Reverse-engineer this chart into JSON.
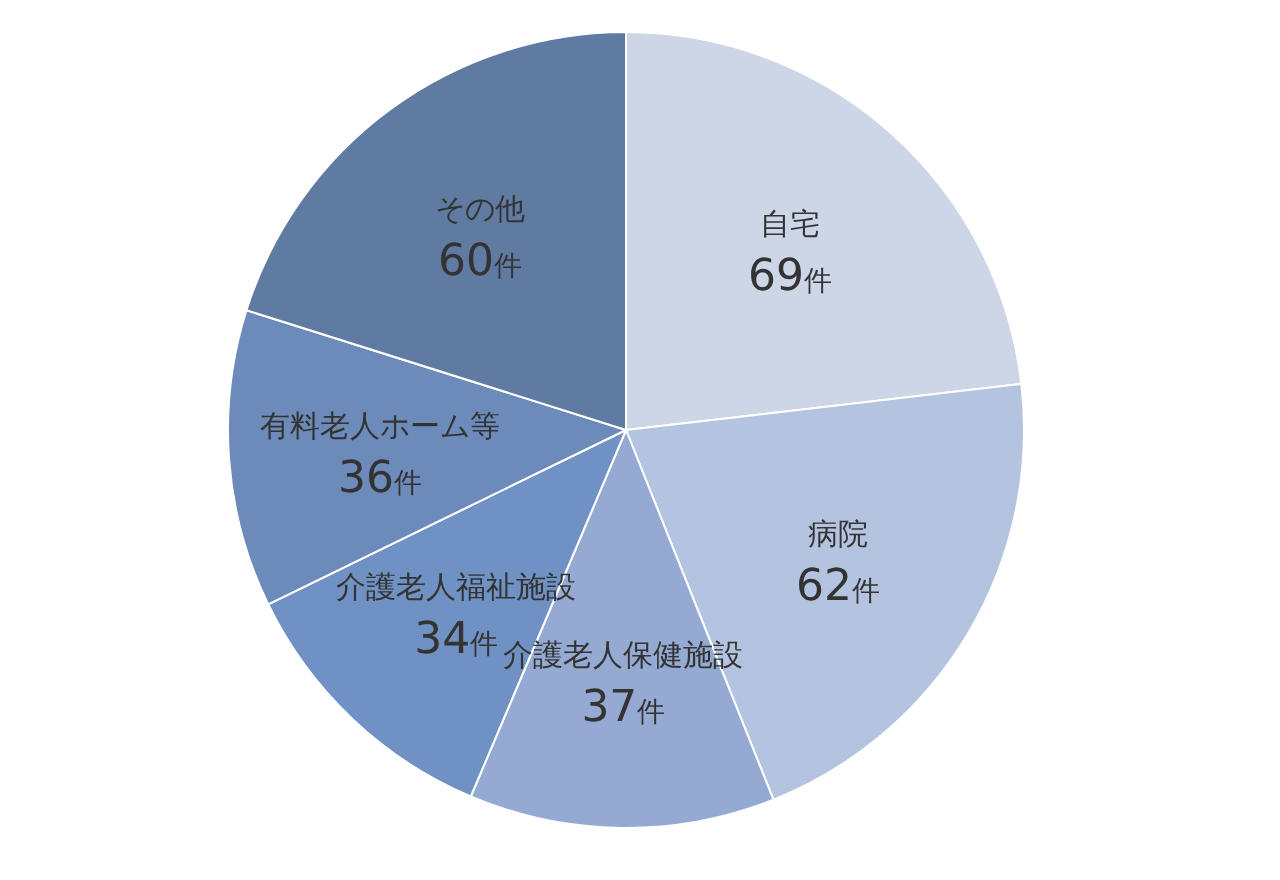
{
  "chart_data": {
    "type": "pie",
    "categories": [
      "自宅",
      "病院",
      "介護老人保健施設",
      "介護老人福祉施設",
      "有料老人ホーム等",
      "その他"
    ],
    "values": [
      69,
      62,
      37,
      34,
      36,
      60
    ],
    "colors": [
      "#cdd6e7",
      "#b4c3df",
      "#95aad3",
      "#6f91c3",
      "#6c8bba",
      "#5f7ba2"
    ],
    "value_labels": [
      "69件",
      "62件",
      "37件",
      "34件",
      "36件",
      "60件"
    ]
  }
}
